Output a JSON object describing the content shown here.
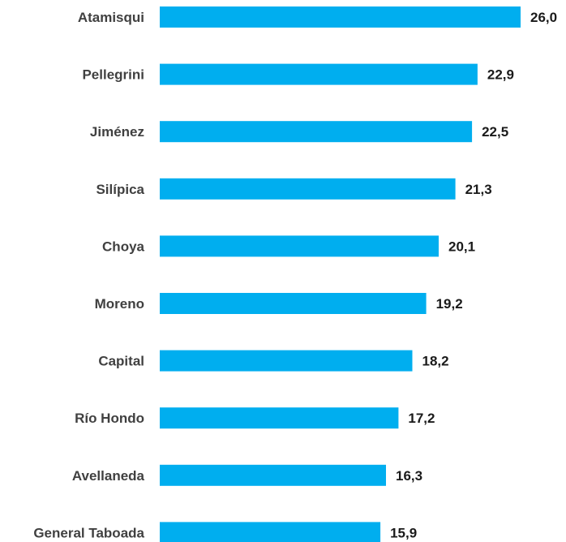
{
  "chart_data": {
    "type": "bar",
    "orientation": "horizontal",
    "categories": [
      "Atamisqui",
      "Pellegrini",
      "Jiménez",
      "Silípica",
      "Choya",
      "Moreno",
      "Capital",
      "Río Hondo",
      "Avellaneda",
      "General Taboada"
    ],
    "values": [
      26.0,
      22.9,
      22.5,
      21.3,
      20.1,
      19.2,
      18.2,
      17.2,
      16.3,
      15.9
    ],
    "value_labels": [
      "26,0",
      "22,9",
      "22,5",
      "21,3",
      "20,1",
      "19,2",
      "18,2",
      "17,2",
      "16,3",
      "15,9"
    ],
    "title": "",
    "xlabel": "",
    "ylabel": "",
    "xlim": [
      0,
      26.0
    ],
    "grid": false,
    "legend": "none",
    "bar_color": "#00aeef"
  }
}
